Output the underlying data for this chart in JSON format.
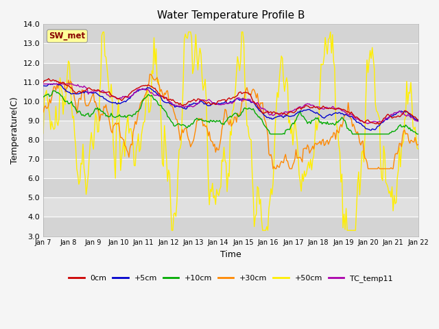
{
  "title": "Water Temperature Profile B",
  "xlabel": "Time",
  "ylabel": "Temperature(C)",
  "ylim": [
    3.0,
    14.0
  ],
  "yticks": [
    3.0,
    4.0,
    5.0,
    6.0,
    7.0,
    8.0,
    9.0,
    10.0,
    11.0,
    12.0,
    13.0,
    14.0
  ],
  "x_labels": [
    "Jan 7",
    "Jan 8",
    "Jan 9",
    "Jan 10",
    "Jan 11",
    "Jan 12",
    "Jan 13",
    "Jan 14",
    "Jan 15",
    "Jan 16",
    "Jan 17",
    "Jan 18",
    "Jan 19",
    "Jan 20",
    "Jan 21",
    "Jan 22"
  ],
  "colors": {
    "0cm": "#cc0000",
    "+5cm": "#0000cc",
    "+10cm": "#00aa00",
    "+30cm": "#ff8800",
    "+50cm": "#ffee00",
    "TC_temp11": "#aa00aa"
  },
  "sw_met_box_color": "#ffff99",
  "sw_met_text_color": "#880000",
  "band_colors": [
    "#d4d4d4",
    "#e0e0e0"
  ]
}
